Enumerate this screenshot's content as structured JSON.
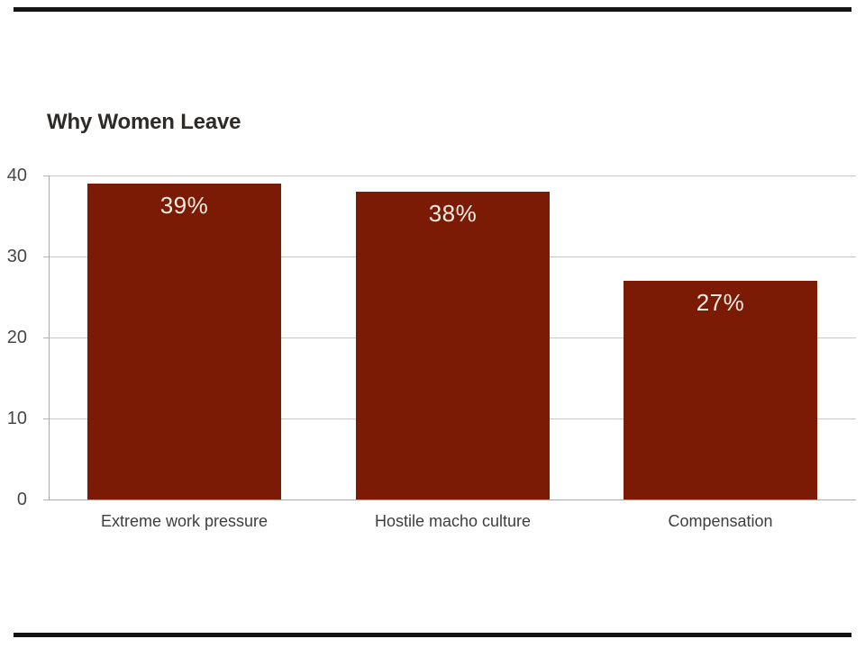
{
  "slide": {
    "background_color": "#ffffff",
    "border_rule_color": "#131313"
  },
  "chart_data": {
    "type": "bar",
    "title": "Why Women Leave",
    "categories": [
      "Extreme work pressure",
      "Hostile macho culture",
      "Compensation"
    ],
    "values": [
      39,
      38,
      27
    ],
    "value_labels": [
      "39%",
      "38%",
      "27%"
    ],
    "yticks": [
      0,
      10,
      20,
      30,
      40
    ],
    "ylim": [
      0,
      40
    ],
    "grid": "horizontal-only",
    "legend_position": "none",
    "bar_color": "#7B1B05",
    "bar_label_color": "#F3ECE3",
    "axis_color": "#A8A8A8",
    "gridline_color": "#C8C8C8",
    "tick_mark_color": "#B5B5B5",
    "tick_label_color": "#474747",
    "category_label_color": "#3E3E3E",
    "title_color": "#2E2A27"
  }
}
